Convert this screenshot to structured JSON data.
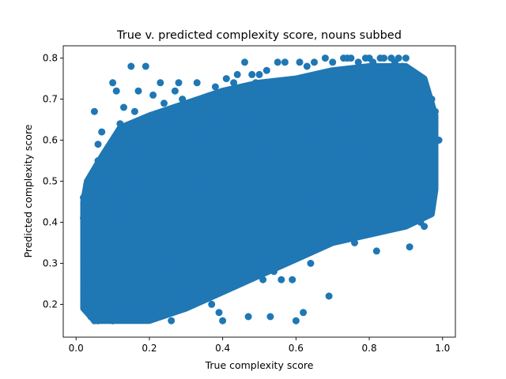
{
  "chart_data": {
    "type": "scatter",
    "title": "True v. predicted complexity score, nouns subbed",
    "xlabel": "True complexity score",
    "ylabel": "Predicted complexity score",
    "xlim": [
      -0.035,
      1.035
    ],
    "ylim": [
      0.12,
      0.83
    ],
    "xticks": [
      "0.0",
      "0.2",
      "0.4",
      "0.6",
      "0.8",
      "1.0"
    ],
    "yticks": [
      "0.2",
      "0.3",
      "0.4",
      "0.5",
      "0.6",
      "0.7",
      "0.8"
    ],
    "grid": false,
    "marker_color": "#1f77b4",
    "series": [
      {
        "name": "",
        "x": [
          0.02,
          0.02,
          0.03,
          0.03,
          0.04,
          0.05,
          0.05,
          0.06,
          0.06,
          0.07,
          0.08,
          0.09,
          0.1,
          0.1,
          0.11,
          0.12,
          0.12,
          0.13,
          0.14,
          0.15,
          0.15,
          0.16,
          0.17,
          0.18,
          0.18,
          0.19,
          0.2,
          0.21,
          0.22,
          0.23,
          0.24,
          0.25,
          0.26,
          0.27,
          0.28,
          0.29,
          0.3,
          0.31,
          0.32,
          0.33,
          0.34,
          0.35,
          0.36,
          0.37,
          0.38,
          0.39,
          0.4,
          0.41,
          0.42,
          0.43,
          0.44,
          0.45,
          0.46,
          0.47,
          0.48,
          0.49,
          0.5,
          0.51,
          0.52,
          0.53,
          0.54,
          0.55,
          0.56,
          0.57,
          0.58,
          0.59,
          0.6,
          0.61,
          0.62,
          0.63,
          0.64,
          0.65,
          0.66,
          0.67,
          0.68,
          0.69,
          0.7,
          0.71,
          0.72,
          0.73,
          0.74,
          0.75,
          0.76,
          0.77,
          0.78,
          0.79,
          0.8,
          0.81,
          0.82,
          0.83,
          0.84,
          0.85,
          0.86,
          0.87,
          0.88,
          0.89,
          0.9,
          0.91,
          0.92,
          0.93,
          0.94,
          0.95,
          0.96,
          0.97,
          0.98,
          0.1,
          0.12,
          0.14,
          0.16,
          0.18,
          0.2,
          0.25,
          0.3,
          0.35,
          0.4,
          0.45,
          0.5,
          0.55,
          0.6,
          0.65,
          0.7,
          0.75,
          0.8,
          0.85,
          0.9,
          0.95,
          0.08,
          0.13,
          0.19,
          0.22,
          0.28,
          0.33,
          0.38,
          0.43,
          0.48,
          0.53,
          0.58,
          0.63,
          0.68,
          0.73,
          0.78,
          0.83,
          0.88,
          0.93,
          0.06,
          0.11,
          0.17,
          0.24,
          0.31,
          0.37,
          0.46,
          0.52,
          0.57,
          0.62,
          0.67,
          0.72,
          0.77,
          0.82,
          0.87,
          0.92,
          0.97,
          0.04,
          0.09,
          0.15,
          0.21,
          0.27,
          0.34,
          0.41,
          0.47,
          0.54,
          0.61,
          0.66,
          0.71,
          0.76,
          0.81,
          0.86,
          0.91,
          0.96,
          0.07,
          0.14,
          0.2,
          0.26,
          0.32,
          0.39,
          0.44,
          0.5,
          0.56,
          0.64,
          0.69,
          0.74,
          0.79,
          0.84,
          0.89,
          0.94,
          0.99
        ],
        "y": [
          0.46,
          0.41,
          0.31,
          0.26,
          0.17,
          0.67,
          0.16,
          0.59,
          0.16,
          0.62,
          0.2,
          0.28,
          0.74,
          0.16,
          0.72,
          0.64,
          0.18,
          0.68,
          0.55,
          0.78,
          0.2,
          0.67,
          0.72,
          0.61,
          0.17,
          0.78,
          0.58,
          0.71,
          0.18,
          0.74,
          0.69,
          0.28,
          0.16,
          0.72,
          0.74,
          0.7,
          0.23,
          0.2,
          0.69,
          0.74,
          0.35,
          0.61,
          0.67,
          0.2,
          0.73,
          0.18,
          0.16,
          0.75,
          0.33,
          0.74,
          0.76,
          0.72,
          0.79,
          0.17,
          0.76,
          0.74,
          0.76,
          0.26,
          0.77,
          0.17,
          0.28,
          0.79,
          0.26,
          0.79,
          0.6,
          0.26,
          0.16,
          0.79,
          0.18,
          0.78,
          0.3,
          0.79,
          0.43,
          0.75,
          0.8,
          0.22,
          0.79,
          0.51,
          0.55,
          0.8,
          0.8,
          0.8,
          0.35,
          0.79,
          0.37,
          0.8,
          0.8,
          0.79,
          0.33,
          0.8,
          0.8,
          0.43,
          0.8,
          0.79,
          0.8,
          0.78,
          0.8,
          0.34,
          0.45,
          0.76,
          0.4,
          0.39,
          0.69,
          0.7,
          0.67,
          0.45,
          0.43,
          0.5,
          0.48,
          0.51,
          0.47,
          0.5,
          0.52,
          0.49,
          0.53,
          0.54,
          0.52,
          0.55,
          0.54,
          0.58,
          0.55,
          0.57,
          0.6,
          0.58,
          0.59,
          0.57,
          0.35,
          0.4,
          0.3,
          0.36,
          0.38,
          0.41,
          0.44,
          0.39,
          0.42,
          0.46,
          0.44,
          0.45,
          0.48,
          0.47,
          0.49,
          0.5,
          0.51,
          0.52,
          0.55,
          0.6,
          0.58,
          0.63,
          0.62,
          0.65,
          0.64,
          0.66,
          0.67,
          0.68,
          0.69,
          0.7,
          0.71,
          0.72,
          0.7,
          0.69,
          0.7,
          0.24,
          0.22,
          0.25,
          0.27,
          0.29,
          0.3,
          0.32,
          0.31,
          0.33,
          0.35,
          0.36,
          0.38,
          0.37,
          0.39,
          0.41,
          0.42,
          0.44,
          0.5,
          0.45,
          0.4,
          0.55,
          0.43,
          0.6,
          0.5,
          0.56,
          0.47,
          0.62,
          0.53,
          0.65,
          0.58,
          0.68,
          0.63,
          0.66,
          0.6
        ]
      }
    ]
  }
}
